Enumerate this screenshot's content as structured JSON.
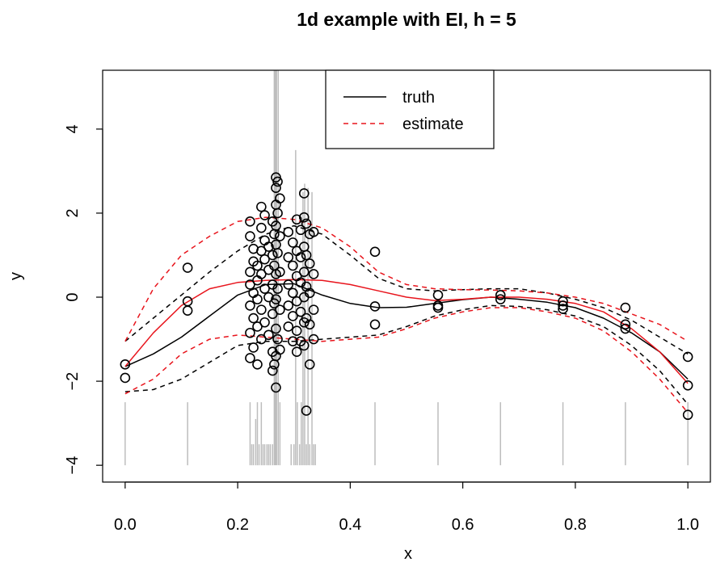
{
  "chart_data": {
    "type": "scatter",
    "title": "1d example with EI, h = 5",
    "xlabel": "x",
    "ylabel": "y",
    "xlim": [
      -0.04,
      1.04
    ],
    "ylim": [
      -4.4,
      5.4
    ],
    "xticks": [
      0.0,
      0.2,
      0.4,
      0.6,
      0.8,
      1.0
    ],
    "xtick_labels": [
      "0.0",
      "0.2",
      "0.4",
      "0.6",
      "0.8",
      "1.0"
    ],
    "yticks": [
      -4,
      -2,
      0,
      2,
      4
    ],
    "ytick_labels": [
      "−4",
      "−2",
      "0",
      "2",
      "4"
    ],
    "grid": false,
    "legend": {
      "placement": "top-center",
      "entries": [
        {
          "label": "truth",
          "color": "#000000",
          "dash": "solid"
        },
        {
          "label": "estimate",
          "color": "#e8141c",
          "dash": "dashed"
        }
      ]
    },
    "colors": {
      "truth": "#000000",
      "estimate": "#e8141c",
      "rug": "#bdbdbd",
      "points": "#000000"
    },
    "series": [
      {
        "name": "truth",
        "style": "solid",
        "color": "#000000",
        "x": [
          0.0,
          0.05,
          0.1,
          0.15,
          0.2,
          0.25,
          0.3,
          0.35,
          0.4,
          0.45,
          0.5,
          0.55,
          0.6,
          0.65,
          0.7,
          0.75,
          0.8,
          0.85,
          0.9,
          0.95,
          1.0
        ],
        "y": [
          -1.65,
          -1.35,
          -0.95,
          -0.45,
          0.05,
          0.3,
          0.32,
          0.05,
          -0.15,
          -0.25,
          -0.24,
          -0.15,
          -0.06,
          0.0,
          -0.05,
          -0.12,
          -0.25,
          -0.5,
          -0.85,
          -1.3,
          -1.95
        ]
      },
      {
        "name": "truth-lower",
        "style": "dashed",
        "color": "#000000",
        "x": [
          0.0,
          0.05,
          0.1,
          0.15,
          0.2,
          0.25,
          0.3,
          0.35,
          0.4,
          0.45,
          0.5,
          0.55,
          0.6,
          0.65,
          0.7,
          0.75,
          0.8,
          0.85,
          0.9,
          0.95,
          1.0
        ],
        "y": [
          -2.25,
          -2.2,
          -1.95,
          -1.55,
          -1.15,
          -1.05,
          -1.05,
          -1.0,
          -0.95,
          -0.9,
          -0.7,
          -0.45,
          -0.3,
          -0.2,
          -0.22,
          -0.3,
          -0.45,
          -0.7,
          -1.15,
          -1.75,
          -2.55
        ]
      },
      {
        "name": "truth-upper",
        "style": "dashed",
        "color": "#000000",
        "x": [
          0.0,
          0.05,
          0.1,
          0.15,
          0.2,
          0.25,
          0.3,
          0.35,
          0.4,
          0.45,
          0.5,
          0.55,
          0.6,
          0.65,
          0.7,
          0.75,
          0.8,
          0.85,
          0.9,
          0.95,
          1.0
        ],
        "y": [
          -1.05,
          -0.5,
          0.05,
          0.6,
          1.1,
          1.5,
          1.7,
          1.5,
          1.0,
          0.45,
          0.2,
          0.15,
          0.18,
          0.2,
          0.2,
          0.1,
          -0.05,
          -0.25,
          -0.55,
          -0.95,
          -1.35
        ]
      },
      {
        "name": "estimate",
        "style": "solid",
        "color": "#e8141c",
        "x": [
          0.0,
          0.05,
          0.1,
          0.15,
          0.2,
          0.25,
          0.3,
          0.35,
          0.4,
          0.45,
          0.5,
          0.55,
          0.6,
          0.65,
          0.7,
          0.75,
          0.8,
          0.85,
          0.9,
          0.95,
          1.0
        ],
        "y": [
          -1.65,
          -0.85,
          -0.2,
          0.2,
          0.35,
          0.4,
          0.42,
          0.4,
          0.3,
          0.15,
          0.0,
          -0.08,
          -0.05,
          0.0,
          0.0,
          -0.05,
          -0.15,
          -0.35,
          -0.75,
          -1.3,
          -2.05
        ]
      },
      {
        "name": "estimate-lower",
        "style": "dashed",
        "color": "#e8141c",
        "x": [
          0.0,
          0.05,
          0.1,
          0.15,
          0.2,
          0.25,
          0.3,
          0.35,
          0.4,
          0.45,
          0.5,
          0.55,
          0.6,
          0.65,
          0.7,
          0.75,
          0.8,
          0.85,
          0.9,
          0.95,
          1.0
        ],
        "y": [
          -2.3,
          -1.95,
          -1.35,
          -1.0,
          -0.9,
          -0.95,
          -1.0,
          -1.05,
          -1.0,
          -0.95,
          -0.75,
          -0.5,
          -0.35,
          -0.25,
          -0.25,
          -0.35,
          -0.5,
          -0.8,
          -1.3,
          -1.95,
          -2.75
        ]
      },
      {
        "name": "estimate-upper",
        "style": "dashed",
        "color": "#e8141c",
        "x": [
          0.0,
          0.05,
          0.1,
          0.15,
          0.2,
          0.25,
          0.3,
          0.35,
          0.4,
          0.45,
          0.5,
          0.55,
          0.6,
          0.65,
          0.7,
          0.75,
          0.8,
          0.85,
          0.9,
          0.95,
          1.0
        ],
        "y": [
          -1.05,
          0.2,
          1.0,
          1.45,
          1.8,
          1.9,
          1.85,
          1.65,
          1.2,
          0.6,
          0.3,
          0.2,
          0.18,
          0.17,
          0.15,
          0.1,
          0.0,
          -0.15,
          -0.4,
          -0.65,
          -1.05
        ]
      }
    ],
    "points": [
      {
        "x": 0.0,
        "y": -1.6
      },
      {
        "x": 0.0,
        "y": -1.92
      },
      {
        "x": 0.111,
        "y": 0.7
      },
      {
        "x": 0.111,
        "y": -0.1
      },
      {
        "x": 0.111,
        "y": -0.32
      },
      {
        "x": 0.222,
        "y": 1.8
      },
      {
        "x": 0.222,
        "y": 1.45
      },
      {
        "x": 0.222,
        "y": 0.6
      },
      {
        "x": 0.222,
        "y": 0.3
      },
      {
        "x": 0.222,
        "y": -0.2
      },
      {
        "x": 0.222,
        "y": -0.85
      },
      {
        "x": 0.222,
        "y": -1.45
      },
      {
        "x": 0.228,
        "y": 1.15
      },
      {
        "x": 0.228,
        "y": 0.85
      },
      {
        "x": 0.228,
        "y": 0.1
      },
      {
        "x": 0.228,
        "y": -0.5
      },
      {
        "x": 0.228,
        "y": -1.2
      },
      {
        "x": 0.235,
        "y": 0.75
      },
      {
        "x": 0.235,
        "y": 0.4
      },
      {
        "x": 0.235,
        "y": -0.05
      },
      {
        "x": 0.235,
        "y": -0.7
      },
      {
        "x": 0.235,
        "y": -1.6
      },
      {
        "x": 0.242,
        "y": 2.15
      },
      {
        "x": 0.242,
        "y": 1.65
      },
      {
        "x": 0.242,
        "y": 1.1
      },
      {
        "x": 0.242,
        "y": 0.55
      },
      {
        "x": 0.242,
        "y": -0.3
      },
      {
        "x": 0.242,
        "y": -1.0
      },
      {
        "x": 0.248,
        "y": 1.95
      },
      {
        "x": 0.248,
        "y": 1.35
      },
      {
        "x": 0.248,
        "y": 0.9
      },
      {
        "x": 0.248,
        "y": 0.2
      },
      {
        "x": 0.248,
        "y": -0.6
      },
      {
        "x": 0.255,
        "y": 1.2
      },
      {
        "x": 0.255,
        "y": 0.65
      },
      {
        "x": 0.255,
        "y": 0.0
      },
      {
        "x": 0.255,
        "y": -0.9
      },
      {
        "x": 0.262,
        "y": 1.8
      },
      {
        "x": 0.262,
        "y": 1.0
      },
      {
        "x": 0.262,
        "y": 0.3
      },
      {
        "x": 0.262,
        "y": -0.4
      },
      {
        "x": 0.262,
        "y": -1.3
      },
      {
        "x": 0.262,
        "y": -1.75
      },
      {
        "x": 0.265,
        "y": 1.5
      },
      {
        "x": 0.265,
        "y": 0.75
      },
      {
        "x": 0.265,
        "y": -0.15
      },
      {
        "x": 0.265,
        "y": -1.6
      },
      {
        "x": 0.268,
        "y": 2.85
      },
      {
        "x": 0.268,
        "y": 2.6
      },
      {
        "x": 0.268,
        "y": 2.2
      },
      {
        "x": 0.268,
        "y": 1.7
      },
      {
        "x": 0.268,
        "y": 1.25
      },
      {
        "x": 0.268,
        "y": 0.55
      },
      {
        "x": 0.268,
        "y": -0.05
      },
      {
        "x": 0.268,
        "y": -0.75
      },
      {
        "x": 0.268,
        "y": -1.4
      },
      {
        "x": 0.268,
        "y": -2.15
      },
      {
        "x": 0.271,
        "y": 2.75
      },
      {
        "x": 0.271,
        "y": 2.0
      },
      {
        "x": 0.271,
        "y": 1.05
      },
      {
        "x": 0.271,
        "y": 0.2
      },
      {
        "x": 0.271,
        "y": -1.0
      },
      {
        "x": 0.275,
        "y": 2.35
      },
      {
        "x": 0.275,
        "y": 1.45
      },
      {
        "x": 0.275,
        "y": 0.6
      },
      {
        "x": 0.275,
        "y": -0.3
      },
      {
        "x": 0.275,
        "y": -1.25
      },
      {
        "x": 0.29,
        "y": 1.55
      },
      {
        "x": 0.29,
        "y": 0.95
      },
      {
        "x": 0.29,
        "y": 0.3
      },
      {
        "x": 0.29,
        "y": -0.2
      },
      {
        "x": 0.29,
        "y": -0.7
      },
      {
        "x": 0.298,
        "y": 1.3
      },
      {
        "x": 0.298,
        "y": 0.75
      },
      {
        "x": 0.298,
        "y": 0.1
      },
      {
        "x": 0.298,
        "y": -0.45
      },
      {
        "x": 0.298,
        "y": -1.05
      },
      {
        "x": 0.305,
        "y": 1.85
      },
      {
        "x": 0.305,
        "y": 1.1
      },
      {
        "x": 0.305,
        "y": 0.5
      },
      {
        "x": 0.305,
        "y": -0.1
      },
      {
        "x": 0.305,
        "y": -0.8
      },
      {
        "x": 0.305,
        "y": -1.3
      },
      {
        "x": 0.312,
        "y": 1.6
      },
      {
        "x": 0.312,
        "y": 0.95
      },
      {
        "x": 0.312,
        "y": 0.35
      },
      {
        "x": 0.312,
        "y": -0.35
      },
      {
        "x": 0.312,
        "y": -1.05
      },
      {
        "x": 0.318,
        "y": 2.47
      },
      {
        "x": 0.318,
        "y": 1.9
      },
      {
        "x": 0.318,
        "y": 1.2
      },
      {
        "x": 0.318,
        "y": 0.6
      },
      {
        "x": 0.318,
        "y": 0.0
      },
      {
        "x": 0.318,
        "y": -0.6
      },
      {
        "x": 0.318,
        "y": -1.15
      },
      {
        "x": 0.322,
        "y": 1.75
      },
      {
        "x": 0.322,
        "y": 1.0
      },
      {
        "x": 0.322,
        "y": 0.25
      },
      {
        "x": 0.322,
        "y": -0.5
      },
      {
        "x": 0.322,
        "y": -2.7
      },
      {
        "x": 0.328,
        "y": 1.5
      },
      {
        "x": 0.328,
        "y": 0.8
      },
      {
        "x": 0.328,
        "y": 0.1
      },
      {
        "x": 0.328,
        "y": -0.65
      },
      {
        "x": 0.328,
        "y": -1.6
      },
      {
        "x": 0.335,
        "y": 1.55
      },
      {
        "x": 0.335,
        "y": 0.55
      },
      {
        "x": 0.335,
        "y": -0.3
      },
      {
        "x": 0.335,
        "y": -1.0
      },
      {
        "x": 0.444,
        "y": 1.08
      },
      {
        "x": 0.444,
        "y": -0.22
      },
      {
        "x": 0.444,
        "y": -0.65
      },
      {
        "x": 0.556,
        "y": 0.05
      },
      {
        "x": 0.556,
        "y": -0.2
      },
      {
        "x": 0.556,
        "y": -0.25
      },
      {
        "x": 0.667,
        "y": 0.05
      },
      {
        "x": 0.667,
        "y": -0.05
      },
      {
        "x": 0.778,
        "y": -0.1
      },
      {
        "x": 0.778,
        "y": -0.2
      },
      {
        "x": 0.778,
        "y": -0.28
      },
      {
        "x": 0.889,
        "y": -0.25
      },
      {
        "x": 0.889,
        "y": -0.65
      },
      {
        "x": 0.889,
        "y": -0.75
      },
      {
        "x": 1.0,
        "y": -1.42
      },
      {
        "x": 1.0,
        "y": -2.1
      },
      {
        "x": 1.0,
        "y": -2.8
      }
    ],
    "rug": [
      {
        "x": 0.0,
        "top": -2.5
      },
      {
        "x": 0.111,
        "top": -2.5
      },
      {
        "x": 0.222,
        "top": -2.5
      },
      {
        "x": 0.225,
        "top": -3.5
      },
      {
        "x": 0.228,
        "top": -3.5
      },
      {
        "x": 0.232,
        "top": -2.9
      },
      {
        "x": 0.235,
        "top": -2.5
      },
      {
        "x": 0.238,
        "top": -3.5
      },
      {
        "x": 0.242,
        "top": -2.5
      },
      {
        "x": 0.245,
        "top": -3.5
      },
      {
        "x": 0.248,
        "top": -3.5
      },
      {
        "x": 0.252,
        "top": -3.5
      },
      {
        "x": 0.255,
        "top": -3.5
      },
      {
        "x": 0.258,
        "top": -3.5
      },
      {
        "x": 0.262,
        "top": -3.5
      },
      {
        "x": 0.265,
        "top": 5.4
      },
      {
        "x": 0.267,
        "top": 5.4
      },
      {
        "x": 0.269,
        "top": 5.4
      },
      {
        "x": 0.272,
        "top": 5.4
      },
      {
        "x": 0.275,
        "top": -2.5
      },
      {
        "x": 0.295,
        "top": -3.5
      },
      {
        "x": 0.3,
        "top": -3.5
      },
      {
        "x": 0.303,
        "top": 3.5
      },
      {
        "x": 0.306,
        "top": -2.5
      },
      {
        "x": 0.31,
        "top": -3.5
      },
      {
        "x": 0.313,
        "top": -2.5
      },
      {
        "x": 0.316,
        "top": 2.5
      },
      {
        "x": 0.319,
        "top": 2.7
      },
      {
        "x": 0.322,
        "top": -3.5
      },
      {
        "x": 0.325,
        "top": 2.6
      },
      {
        "x": 0.328,
        "top": -3.5
      },
      {
        "x": 0.332,
        "top": 2.5
      },
      {
        "x": 0.335,
        "top": -3.5
      },
      {
        "x": 0.338,
        "top": -3.5
      },
      {
        "x": 0.444,
        "top": -2.5
      },
      {
        "x": 0.556,
        "top": -2.5
      },
      {
        "x": 0.667,
        "top": -2.5
      },
      {
        "x": 0.778,
        "top": -2.5
      },
      {
        "x": 0.889,
        "top": -2.5
      },
      {
        "x": 1.0,
        "top": -2.5
      }
    ],
    "rug_baseline": -4.0
  }
}
